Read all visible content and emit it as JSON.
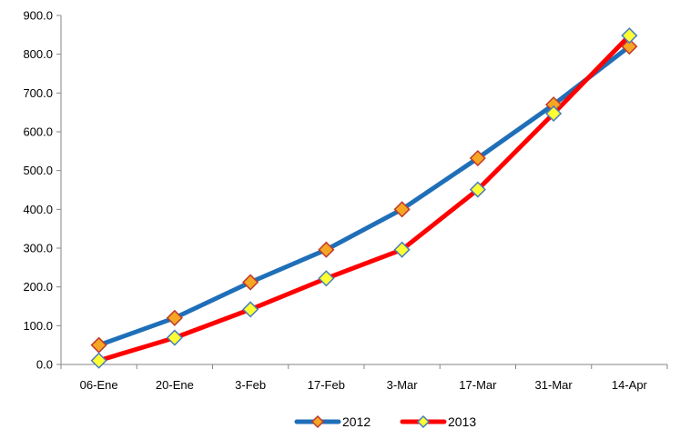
{
  "chart_data": {
    "type": "line",
    "title": "",
    "xlabel": "",
    "ylabel": "",
    "categories": [
      "06-Ene",
      "20-Ene",
      "3-Feb",
      "17-Feb",
      "3-Mar",
      "17-Mar",
      "31-Mar",
      "14-Apr"
    ],
    "ylim": [
      0,
      900
    ],
    "yticks": [
      "0.0",
      "100.0",
      "200.0",
      "300.0",
      "400.0",
      "500.0",
      "600.0",
      "700.0",
      "800.0",
      "900.0"
    ],
    "grid": false,
    "legend_position": "bottom",
    "series": [
      {
        "name": "2012",
        "values": [
          50,
          120,
          212,
          296,
          400,
          532,
          670,
          820
        ],
        "line_color": "#1F6FB8",
        "marker_fill": "#F5A623",
        "marker_stroke": "#C0392B"
      },
      {
        "name": "2013",
        "values": [
          10,
          69,
          142,
          222,
          296,
          451,
          647,
          848
        ],
        "line_color": "#FF0000",
        "marker_fill": "#FFFF33",
        "marker_stroke": "#4A7EBB"
      }
    ]
  }
}
